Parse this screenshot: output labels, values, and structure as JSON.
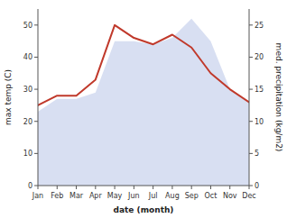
{
  "chart_data": {
    "type": "line",
    "categories": [
      "Jan",
      "Feb",
      "Mar",
      "Apr",
      "May",
      "Jun",
      "Jul",
      "Aug",
      "Sep",
      "Oct",
      "Nov",
      "Dec"
    ],
    "series": [
      {
        "type": "area",
        "axis": "y2",
        "color": "#b8c4e8",
        "values": [
          11.5,
          13.5,
          13.5,
          14.5,
          22.5,
          22.5,
          22,
          23,
          26,
          22.5,
          15,
          13
        ]
      },
      {
        "type": "line",
        "color": "#c0392b",
        "values": [
          25,
          28,
          28,
          33,
          50,
          46,
          44,
          47,
          43,
          35,
          30,
          26
        ]
      }
    ],
    "xlabel": "date (month)",
    "ylabel": "max temp (C)",
    "y2label": "med. precipitation (kg/m2)",
    "ylim": [
      0,
      55
    ],
    "yticks": [
      0,
      10,
      20,
      30,
      40,
      50
    ],
    "y2lim": [
      0,
      27.5
    ],
    "y2ticks": [
      0,
      5,
      10,
      15,
      20,
      25
    ],
    "grid": false
  }
}
